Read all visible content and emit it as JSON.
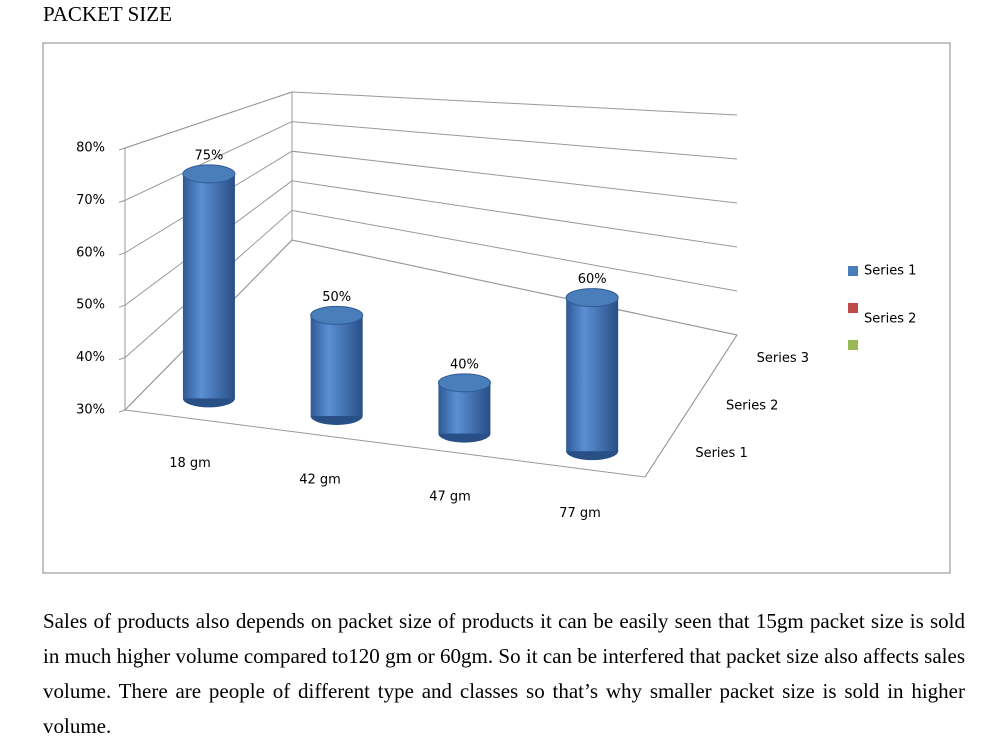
{
  "heading": "PACKET SIZE",
  "chart_data": {
    "type": "bar3d",
    "categories": [
      "18 gm",
      "42 gm",
      "47 gm",
      "77 gm"
    ],
    "series": [
      {
        "name": "Series 1",
        "color": "#4a7ebb",
        "values": [
          75,
          50,
          40,
          60
        ],
        "value_labels": [
          "75%",
          "50%",
          "40%",
          "60%"
        ]
      },
      {
        "name": "Series 2",
        "color": "#be4b48",
        "values": [
          null,
          null,
          null,
          null
        ]
      },
      {
        "name": null,
        "color": "#98b954",
        "values": [
          null,
          null,
          null,
          null
        ]
      }
    ],
    "depth_labels": [
      "Series 1",
      "Series 2",
      "Series 3"
    ],
    "ylim": [
      30,
      80
    ],
    "yticks": [
      {
        "value": 30,
        "label": "30%"
      },
      {
        "value": 40,
        "label": "40%"
      },
      {
        "value": 50,
        "label": "50%"
      },
      {
        "value": 60,
        "label": "60%"
      },
      {
        "value": 70,
        "label": "70%"
      },
      {
        "value": 80,
        "label": "80%"
      }
    ],
    "grid": true,
    "legend": "right"
  },
  "paragraph": "Sales of products also depends on packet size of products it can be easily seen that 15gm packet size is sold in much higher volume compared to120 gm or 60gm. So it can be interfered that packet size also affects sales volume. There are people of different type and classes so that’s why smaller packet size is sold in higher volume."
}
